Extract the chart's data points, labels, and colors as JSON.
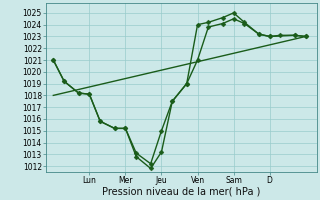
{
  "xlabel": "Pression niveau de la mer( hPa )",
  "bg_color": "#cce8e8",
  "grid_color": "#99cccc",
  "line_color": "#1a5c1a",
  "ylim": [
    1011.5,
    1025.8
  ],
  "xlim": [
    -0.2,
    7.3
  ],
  "yticks": [
    1012,
    1013,
    1014,
    1015,
    1016,
    1017,
    1018,
    1019,
    1020,
    1021,
    1022,
    1023,
    1024,
    1025
  ],
  "day_labels": [
    "Lun",
    "Mer",
    "Jeu",
    "Ven",
    "Sam",
    "D"
  ],
  "day_positions": [
    1.0,
    2.0,
    3.0,
    4.0,
    5.0,
    6.0
  ],
  "vline_positions": [
    1.0,
    2.0,
    3.0,
    4.0,
    5.0,
    6.0
  ],
  "series1_x": [
    0.0,
    0.3,
    0.7,
    1.0,
    1.3,
    1.7,
    2.0,
    2.3,
    2.7,
    3.0,
    3.3,
    3.7,
    4.0,
    4.3,
    4.7,
    5.0,
    5.3,
    5.7,
    6.0,
    6.3,
    6.7,
    7.0
  ],
  "series1_y": [
    1021,
    1019.2,
    1018.2,
    1018.1,
    1015.8,
    1015.2,
    1015.2,
    1013.1,
    1012.2,
    1015.0,
    1017.5,
    1019.0,
    1021.0,
    1023.8,
    1024.1,
    1024.5,
    1024.1,
    1023.2,
    1023.0,
    1023.1,
    1023.1,
    1023.0
  ],
  "series2_x": [
    0.0,
    0.3,
    0.7,
    1.0,
    1.3,
    1.7,
    2.0,
    2.3,
    2.7,
    3.0,
    3.3,
    3.7,
    4.0,
    4.3,
    4.7,
    5.0,
    5.3,
    5.7,
    6.0,
    6.7,
    7.0
  ],
  "series2_y": [
    1021,
    1019.2,
    1018.2,
    1018.1,
    1015.8,
    1015.2,
    1015.2,
    1012.8,
    1011.8,
    1013.2,
    1017.5,
    1019.0,
    1024.0,
    1024.2,
    1024.6,
    1025.0,
    1024.2,
    1023.2,
    1023.0,
    1023.1,
    1023.0
  ],
  "series3_x": [
    0.0,
    7.0
  ],
  "series3_y": [
    1018.0,
    1023.0
  ],
  "marker_size": 2.5,
  "line_width": 1.0,
  "tick_fontsize": 5.5,
  "label_fontsize": 7.0
}
